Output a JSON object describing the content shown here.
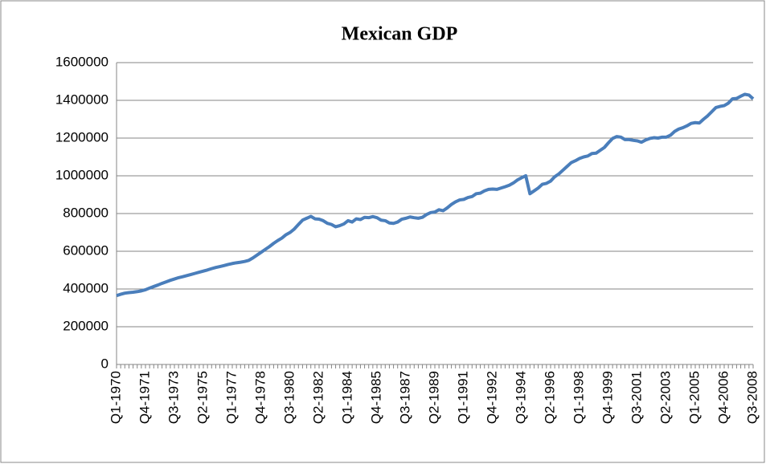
{
  "chart_data": {
    "type": "line",
    "title": "Mexican GDP",
    "color": "#4a7ebb",
    "categories": [
      "Q1-1970",
      null,
      null,
      null,
      null,
      null,
      null,
      "Q4-1971",
      null,
      null,
      null,
      null,
      null,
      null,
      "Q3-1973",
      null,
      null,
      null,
      null,
      null,
      null,
      "Q2-1975",
      null,
      null,
      null,
      null,
      null,
      null,
      "Q1-1977",
      null,
      null,
      null,
      null,
      null,
      null,
      "Q4-1978",
      null,
      null,
      null,
      null,
      null,
      null,
      "Q3-1980",
      null,
      null,
      null,
      null,
      null,
      null,
      "Q2-1982",
      null,
      null,
      null,
      null,
      null,
      null,
      "Q1-1984",
      null,
      null,
      null,
      null,
      null,
      null,
      "Q4-1985",
      null,
      null,
      null,
      null,
      null,
      null,
      "Q3-1987",
      null,
      null,
      null,
      null,
      null,
      null,
      "Q2-1989",
      null,
      null,
      null,
      null,
      null,
      null,
      "Q1-1991",
      null,
      null,
      null,
      null,
      null,
      null,
      "Q4-1992",
      null,
      null,
      null,
      null,
      null,
      null,
      "Q3-1994",
      null,
      null,
      null,
      null,
      null,
      null,
      "Q2-1996",
      null,
      null,
      null,
      null,
      null,
      null,
      "Q1-1998",
      null,
      null,
      null,
      null,
      null,
      null,
      "Q4-1999",
      null,
      null,
      null,
      null,
      null,
      null,
      "Q3-2001",
      null,
      null,
      null,
      null,
      null,
      null,
      "Q2-2003",
      null,
      null,
      null,
      null,
      null,
      null,
      "Q1-2005",
      null,
      null,
      null,
      null,
      null,
      null,
      "Q4-2006",
      null,
      null,
      null,
      null,
      null,
      null,
      "Q3-2008"
    ],
    "values": [
      365000,
      372000,
      378000,
      381000,
      383000,
      386000,
      390000,
      396000,
      405000,
      413000,
      421000,
      430000,
      438000,
      446000,
      453000,
      460000,
      465000,
      471000,
      477000,
      483000,
      489000,
      495000,
      501000,
      508000,
      514000,
      519000,
      524000,
      530000,
      535000,
      539000,
      542000,
      546000,
      552000,
      565000,
      580000,
      595000,
      610000,
      625000,
      642000,
      657000,
      670000,
      688000,
      700000,
      718000,
      742000,
      765000,
      775000,
      785000,
      772000,
      770000,
      762000,
      748000,
      742000,
      730000,
      736000,
      745000,
      762000,
      755000,
      772000,
      768000,
      780000,
      778000,
      784000,
      778000,
      765000,
      762000,
      750000,
      748000,
      755000,
      770000,
      775000,
      782000,
      778000,
      775000,
      780000,
      795000,
      805000,
      808000,
      820000,
      815000,
      830000,
      848000,
      862000,
      872000,
      875000,
      885000,
      890000,
      905000,
      908000,
      920000,
      928000,
      930000,
      928000,
      935000,
      942000,
      950000,
      962000,
      978000,
      990000,
      1000000,
      905000,
      920000,
      935000,
      955000,
      960000,
      972000,
      995000,
      1010000,
      1030000,
      1050000,
      1070000,
      1080000,
      1092000,
      1100000,
      1105000,
      1118000,
      1120000,
      1135000,
      1150000,
      1175000,
      1198000,
      1208000,
      1205000,
      1192000,
      1192000,
      1188000,
      1185000,
      1178000,
      1190000,
      1198000,
      1202000,
      1200000,
      1205000,
      1205000,
      1215000,
      1235000,
      1248000,
      1255000,
      1265000,
      1278000,
      1282000,
      1280000,
      1300000,
      1318000,
      1340000,
      1362000,
      1368000,
      1372000,
      1385000,
      1408000,
      1410000,
      1422000,
      1432000,
      1428000,
      1408000
    ],
    "ylim": [
      0,
      1600000
    ],
    "yticks": [
      0,
      200000,
      400000,
      600000,
      800000,
      1000000,
      1200000,
      1400000,
      1600000
    ],
    "grid": true
  }
}
